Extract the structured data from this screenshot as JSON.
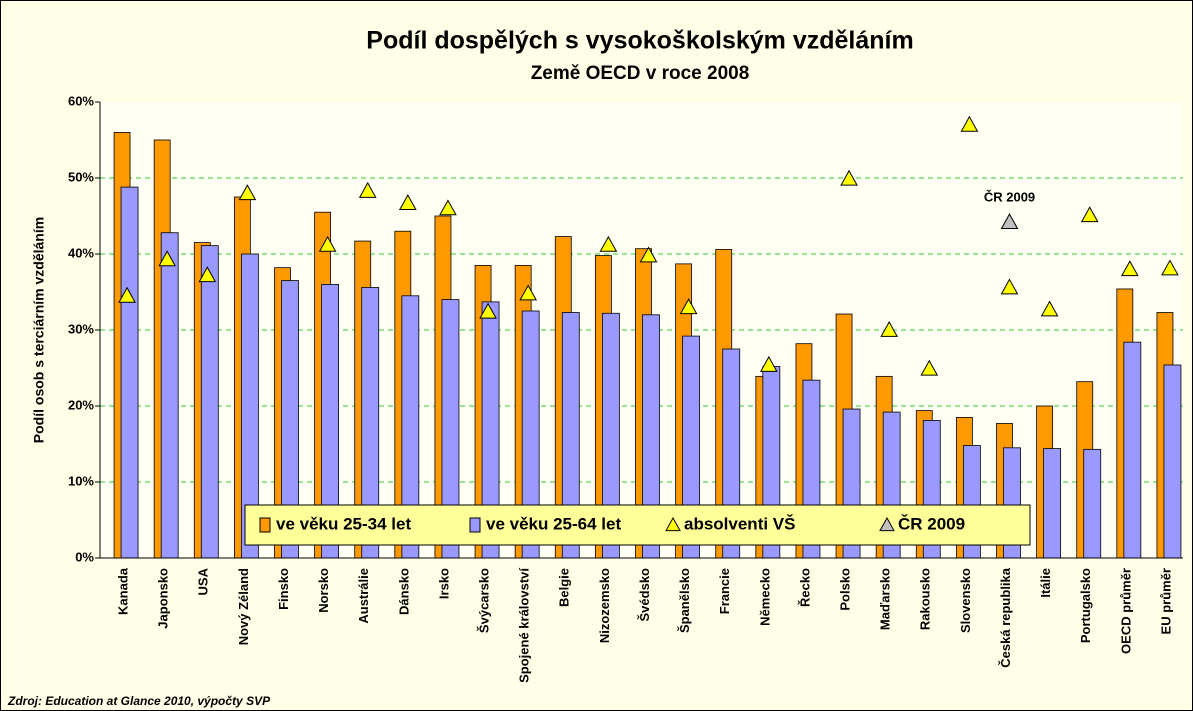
{
  "chart_data": {
    "type": "bar",
    "title": "Podíl dospělých s vysokoškolským vzděláním",
    "subtitle": "Země OECD v roce 2008",
    "y_label": "Podíl osob s terciárním vzděláním",
    "source": "Zdroj: Education at Glance 2010, výpočty SVP",
    "annotation": "ČR 2009",
    "categories": [
      "Kanada",
      "Japonsko",
      "USA",
      "Nový Zéland",
      "Finsko",
      "Norsko",
      "Austrálie",
      "Dánsko",
      "Irsko",
      "Švýcarsko",
      "Spojené království",
      "Belgie",
      "Nizozemsko",
      "Švédsko",
      "Španělsko",
      "Francie",
      "Německo",
      "Řecko",
      "Polsko",
      "Maďarsko",
      "Rakousko",
      "Slovensko",
      "Česká republika",
      "Itálie",
      "Portugalsko",
      "OECD průměr",
      "EU průměr"
    ],
    "series": [
      {
        "name": "ve věku 25-34 let",
        "kind": "bar",
        "color": "#ff9900",
        "values": [
          56,
          55,
          41.5,
          47.5,
          38.2,
          45.5,
          41.7,
          43,
          45,
          38.5,
          38.5,
          42.3,
          39.8,
          40.7,
          38.7,
          40.6,
          23.9,
          28.2,
          32.1,
          23.9,
          19.4,
          18.5,
          17.7,
          20,
          23.2,
          35.4,
          32.3
        ]
      },
      {
        "name": "ve věku 25-64 let",
        "kind": "bar",
        "color": "#9999ff",
        "values": [
          48.8,
          42.8,
          41.1,
          40,
          36.5,
          36,
          35.6,
          34.5,
          34,
          33.7,
          32.5,
          32.3,
          32.2,
          32,
          29.2,
          27.5,
          25.2,
          23.4,
          19.6,
          19.2,
          18.1,
          14.8,
          14.5,
          14.4,
          14.3,
          28.4,
          25.4
        ]
      },
      {
        "name": "absolventi VŠ",
        "kind": "marker",
        "color": "#ffff00",
        "values": [
          34.5,
          39.3,
          37.2,
          48,
          null,
          41.2,
          48.3,
          46.7,
          46,
          32.4,
          34.8,
          null,
          41.2,
          39.8,
          33,
          null,
          25.4,
          null,
          49.9,
          30,
          24.9,
          57,
          35.6,
          32.7,
          45.1,
          38,
          38.1
        ]
      },
      {
        "name": "ČR 2009",
        "kind": "marker",
        "color": "#c0c0c0",
        "values": [
          null,
          null,
          null,
          null,
          null,
          null,
          null,
          null,
          null,
          null,
          null,
          null,
          null,
          null,
          null,
          null,
          null,
          null,
          null,
          null,
          null,
          null,
          44.2,
          null,
          null,
          null,
          null
        ]
      }
    ],
    "ylim": [
      0,
      60
    ],
    "yticks": [
      {
        "value": 0,
        "label": "0%"
      },
      {
        "value": 10,
        "label": "10%"
      },
      {
        "value": 20,
        "label": "20%"
      },
      {
        "value": 30,
        "label": "30%"
      },
      {
        "value": 40,
        "label": "40%"
      },
      {
        "value": 50,
        "label": "50%"
      },
      {
        "value": 60,
        "label": "60%"
      }
    ],
    "grid": true
  }
}
